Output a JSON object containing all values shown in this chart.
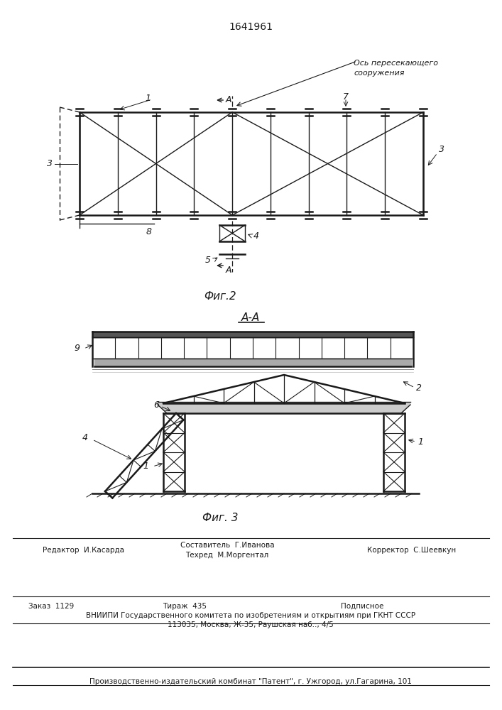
{
  "patent_number": "1641961",
  "fig2_caption": "Фиг.2",
  "fig3_caption": "Фиг. 3",
  "aa_label": "A-A",
  "background": "#ffffff",
  "line_color": "#1a1a1a",
  "annotation_text": "Ось пересекающего\nсооружения",
  "footer_editor": "Редактор  И.Касарда",
  "footer_comp": "Составитель  Г.Иванова",
  "footer_tech": "Техред  М.Моргентал",
  "footer_corr": "Корректор  С.Шеевкун",
  "footer_order": "Заказ  1129",
  "footer_tirazh": "Тираж  435",
  "footer_podp": "Подписное",
  "footer_vnipi": "ВНИИПИ Государственного комитета по изобретениям и открытиям при ГКНТ СССР",
  "footer_addr": "113035, Москва, Ж-35, Раушская наб.., 4/5",
  "footer_pub": "Производственно-издательский комбинат \"Патент\", г. Ужгород, ул.Гагарина, 101"
}
